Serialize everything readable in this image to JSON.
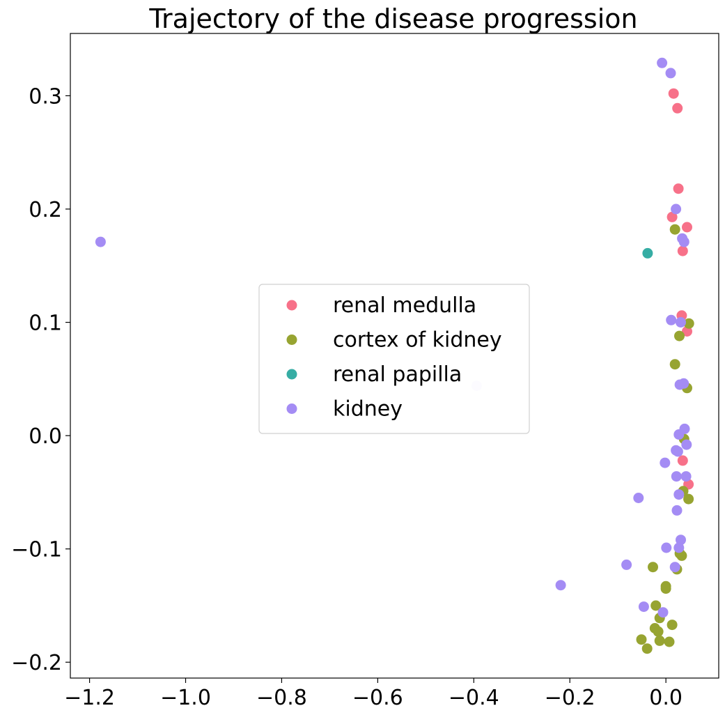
{
  "chart_data": {
    "type": "scatter",
    "title": "Trajectory of the disease progression",
    "xlabel": "",
    "ylabel": "",
    "xlim": [
      -1.24,
      0.11
    ],
    "ylim": [
      -0.214,
      0.355
    ],
    "x_ticks": [
      -1.2,
      -1.0,
      -0.8,
      -0.6,
      -0.4,
      -0.2,
      0.0
    ],
    "x_tick_labels": [
      "−1.2",
      "−1.0",
      "−0.8",
      "−0.6",
      "−0.4",
      "−0.2",
      "0.0"
    ],
    "y_ticks": [
      0.3,
      0.2,
      0.1,
      0.0,
      -0.1,
      -0.2
    ],
    "y_tick_labels": [
      "0.3",
      "0.2",
      "0.1",
      "0.0",
      "−0.1",
      "−0.2"
    ],
    "grid": false,
    "legend_position": "center",
    "series": [
      {
        "name": "renal medulla",
        "color": "#f77189",
        "points": [
          [
            0.016,
            0.302
          ],
          [
            0.024,
            0.289
          ],
          [
            0.026,
            0.218
          ],
          [
            0.013,
            0.193
          ],
          [
            0.044,
            0.184
          ],
          [
            0.035,
            0.163
          ],
          [
            0.033,
            0.106
          ],
          [
            0.044,
            0.092
          ],
          [
            0.035,
            -0.022
          ],
          [
            0.047,
            -0.043
          ]
        ]
      },
      {
        "name": "cortex of kidney",
        "color": "#97a431",
        "points": [
          [
            0.019,
            0.182
          ],
          [
            0.048,
            0.099
          ],
          [
            0.028,
            0.088
          ],
          [
            0.019,
            0.063
          ],
          [
            0.044,
            0.042
          ],
          [
            0.038,
            -0.003
          ],
          [
            0.036,
            -0.049
          ],
          [
            0.047,
            -0.056
          ],
          [
            0.029,
            -0.104
          ],
          [
            0.033,
            -0.106
          ],
          [
            0.023,
            -0.118
          ],
          [
            -0.027,
            -0.116
          ],
          [
            0.0,
            -0.133
          ],
          [
            0.0,
            -0.135
          ],
          [
            -0.021,
            -0.15
          ],
          [
            -0.013,
            -0.161
          ],
          [
            0.013,
            -0.167
          ],
          [
            -0.023,
            -0.17
          ],
          [
            -0.016,
            -0.173
          ],
          [
            -0.051,
            -0.18
          ],
          [
            -0.013,
            -0.181
          ],
          [
            0.007,
            -0.182
          ],
          [
            -0.039,
            -0.188
          ]
        ]
      },
      {
        "name": "renal papilla",
        "color": "#36ada4",
        "points": [
          [
            -0.038,
            0.161
          ]
        ]
      },
      {
        "name": "kidney",
        "color": "#a48cf4",
        "points": [
          [
            -0.008,
            0.329
          ],
          [
            0.01,
            0.32
          ],
          [
            0.021,
            0.2
          ],
          [
            0.034,
            0.174
          ],
          [
            0.038,
            0.171
          ],
          [
            -1.177,
            0.171
          ],
          [
            0.011,
            0.102
          ],
          [
            0.031,
            0.1
          ],
          [
            0.029,
            0.045
          ],
          [
            0.037,
            0.046
          ],
          [
            0.039,
            0.006
          ],
          [
            0.027,
            0.001
          ],
          [
            0.043,
            -0.008
          ],
          [
            0.021,
            -0.013
          ],
          [
            0.025,
            -0.014
          ],
          [
            -0.002,
            -0.024
          ],
          [
            0.022,
            -0.036
          ],
          [
            0.042,
            -0.036
          ],
          [
            -0.057,
            -0.055
          ],
          [
            0.027,
            -0.052
          ],
          [
            0.023,
            -0.066
          ],
          [
            0.031,
            -0.092
          ],
          [
            0.027,
            -0.099
          ],
          [
            0.001,
            -0.099
          ],
          [
            -0.082,
            -0.114
          ],
          [
            0.019,
            -0.116
          ],
          [
            -0.219,
            -0.132
          ],
          [
            -0.006,
            -0.156
          ],
          [
            -0.046,
            -0.151
          ]
        ]
      },
      {
        "name": "",
        "color": "#e8e4fb",
        "points": [
          [
            -0.394,
            0.044
          ]
        ]
      }
    ]
  }
}
